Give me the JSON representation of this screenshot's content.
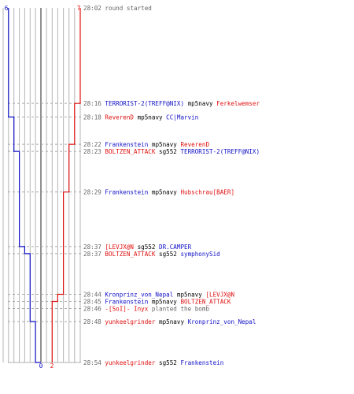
{
  "chart_data": {
    "type": "line",
    "title": "",
    "colors": {
      "team_a": "#1010c8",
      "team_b": "#e01010",
      "time": "#666666",
      "note": "#666666",
      "neutral": "#000000",
      "grid": "#b4b4b4",
      "guide": "#909090",
      "dash": "#aaaaaa"
    },
    "axis": {
      "max": 7,
      "team_a_start_label": "6",
      "team_b_start_label": "7",
      "team_a_end_label": "0",
      "team_b_end_label": "2"
    },
    "time_range": [
      "28:02",
      "28:54"
    ],
    "series": [
      {
        "team": "team_a",
        "start": 6,
        "end": 0
      },
      {
        "team": "team_b",
        "start": 7,
        "end": 2
      }
    ],
    "events": [
      {
        "time": "28:02",
        "type": "start",
        "note": "round started"
      },
      {
        "time": "28:16",
        "type": "kill",
        "killer": "TERRORIST-2(TREFF@NIX)",
        "killer_team": "team_a",
        "weapon": "mp5navy",
        "victim": "Ferkelwemser",
        "victim_team": "team_b",
        "team_a_alive": 6,
        "team_b_alive": 6
      },
      {
        "time": "28:18",
        "type": "kill",
        "killer": "ReverenD",
        "killer_team": "team_b",
        "weapon": "mp5navy",
        "victim": "CC|Marvin",
        "victim_team": "team_a",
        "team_a_alive": 5,
        "team_b_alive": 6
      },
      {
        "time": "28:22",
        "type": "kill",
        "killer": "Frankenstein",
        "killer_team": "team_a",
        "weapon": "mp5navy",
        "victim": "ReverenD",
        "victim_team": "team_b",
        "team_a_alive": 5,
        "team_b_alive": 5
      },
      {
        "time": "28:23",
        "type": "kill",
        "killer": "BOLTZEN_ATTACK",
        "killer_team": "team_b",
        "weapon": "sg552",
        "victim": "TERRORIST-2(TREFF@NIX)",
        "victim_team": "team_a",
        "team_a_alive": 4,
        "team_b_alive": 5
      },
      {
        "time": "28:29",
        "type": "kill",
        "killer": "Frankenstein",
        "killer_team": "team_a",
        "weapon": "mp5navy",
        "victim": "Hubschrau[BAER]",
        "victim_team": "team_b",
        "team_a_alive": 4,
        "team_b_alive": 4
      },
      {
        "time": "28:37",
        "type": "kill",
        "killer": "[LEVJX@N",
        "killer_team": "team_b",
        "weapon": "sg552",
        "victim": "DR.CAMPER",
        "victim_team": "team_a",
        "team_a_alive": 3,
        "team_b_alive": 4
      },
      {
        "time": "28:37",
        "type": "kill",
        "killer": "BOLTZEN_ATTACK",
        "killer_team": "team_b",
        "weapon": "sg552",
        "victim": "symphonySid",
        "victim_team": "team_a",
        "team_a_alive": 2,
        "team_b_alive": 4
      },
      {
        "time": "28:44",
        "type": "kill",
        "killer": "Kronprinz_von_Nepal",
        "killer_team": "team_a",
        "weapon": "mp5navy",
        "victim": "[LEVJX@N",
        "victim_team": "team_b",
        "team_a_alive": 2,
        "team_b_alive": 3
      },
      {
        "time": "28:45",
        "type": "kill",
        "killer": "Frankenstein",
        "killer_team": "team_a",
        "weapon": "mp5navy",
        "victim": "BOLTZEN_ATTACK",
        "victim_team": "team_b",
        "team_a_alive": 2,
        "team_b_alive": 2
      },
      {
        "time": "28:46",
        "type": "bomb",
        "killer": "-[SoI]- Inyx",
        "killer_team": "team_b",
        "note": "planted the bomb",
        "team_a_alive": 2,
        "team_b_alive": 2
      },
      {
        "time": "28:48",
        "type": "kill",
        "killer": "yunkeelgrinder",
        "killer_team": "team_b",
        "weapon": "mp5navy",
        "victim": "Kronprinz_von_Nepal",
        "victim_team": "team_a",
        "team_a_alive": 1,
        "team_b_alive": 2
      },
      {
        "time": "28:54",
        "type": "kill",
        "killer": "yunkeelgrinder",
        "killer_team": "team_b",
        "weapon": "sg552",
        "victim": "Frankenstein",
        "victim_team": "team_a",
        "team_a_alive": 0,
        "team_b_alive": 2
      }
    ]
  }
}
